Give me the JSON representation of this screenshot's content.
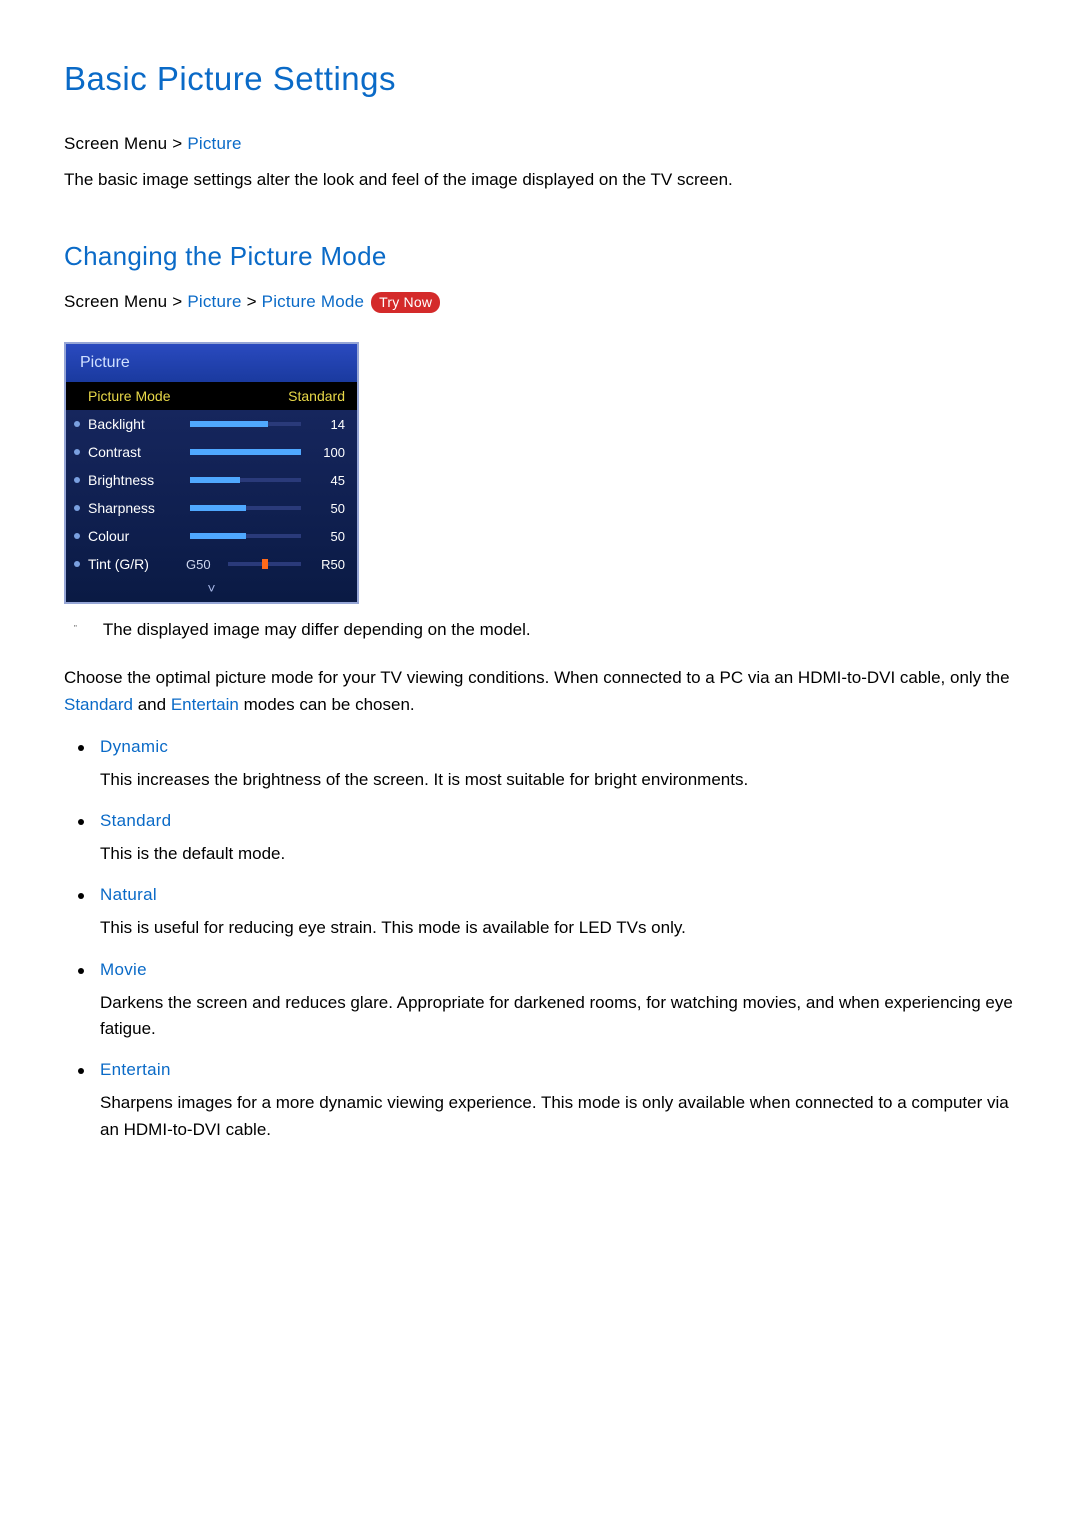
{
  "page": {
    "title": "Basic Picture Settings",
    "breadcrumb1": {
      "root": "Screen Menu",
      "sep": ">",
      "leaf": "Picture"
    },
    "intro": "The basic image settings alter the look and feel of the image displayed on the TV screen."
  },
  "section": {
    "title": "Changing the Picture Mode",
    "breadcrumb": {
      "root": "Screen Menu",
      "sep": ">",
      "mid": "Picture",
      "leaf": "Picture Mode"
    },
    "try_now": "Try Now"
  },
  "tv_menu": {
    "title": "Picture",
    "picture_mode": {
      "label": "Picture Mode",
      "value": "Standard"
    },
    "rows": [
      {
        "label": "Backlight",
        "value": "14",
        "fill_pct": 70,
        "max": 20
      },
      {
        "label": "Contrast",
        "value": "100",
        "fill_pct": 100,
        "max": 100
      },
      {
        "label": "Brightness",
        "value": "45",
        "fill_pct": 45,
        "max": 100
      },
      {
        "label": "Sharpness",
        "value": "50",
        "fill_pct": 50,
        "max": 100
      },
      {
        "label": "Colour",
        "value": "50",
        "fill_pct": 50,
        "max": 100
      }
    ],
    "tint": {
      "label": "Tint (G/R)",
      "left": "G50",
      "right": "R50",
      "mark_pct": 50
    },
    "chevron": "˅"
  },
  "footnote": {
    "mark": "\"",
    "text": "The displayed image may differ depending on the model."
  },
  "description": {
    "pre": "Choose the optimal picture mode for your TV viewing conditions. When connected to a PC via an HDMI-to-DVI cable, only the ",
    "link1": "Standard",
    "mid": " and ",
    "link2": "Entertain",
    "post": " modes can be chosen."
  },
  "modes": [
    {
      "name": "Dynamic",
      "desc": "This increases the brightness of the screen. It is most suitable for bright environments."
    },
    {
      "name": "Standard",
      "desc": "This is the default mode."
    },
    {
      "name": "Natural",
      "desc": "This is useful for reducing eye strain. This mode is available for LED TVs only."
    },
    {
      "name": "Movie",
      "desc": "Darkens the screen and reduces glare. Appropriate for darkened rooms, for watching movies, and when experiencing eye fatigue."
    },
    {
      "name": "Entertain",
      "desc": "Sharpens images for a more dynamic viewing experience. This mode is only available when connected to a computer via an HDMI-to-DVI cable."
    }
  ],
  "colors": {
    "heading": "#0a6ac7",
    "try_now_bg": "#d42a2a",
    "menu_border": "#96a6d6",
    "slider_fill": "#4fa8ff",
    "slider_mark": "#ff6a1a",
    "selected_text": "#e8d848"
  }
}
